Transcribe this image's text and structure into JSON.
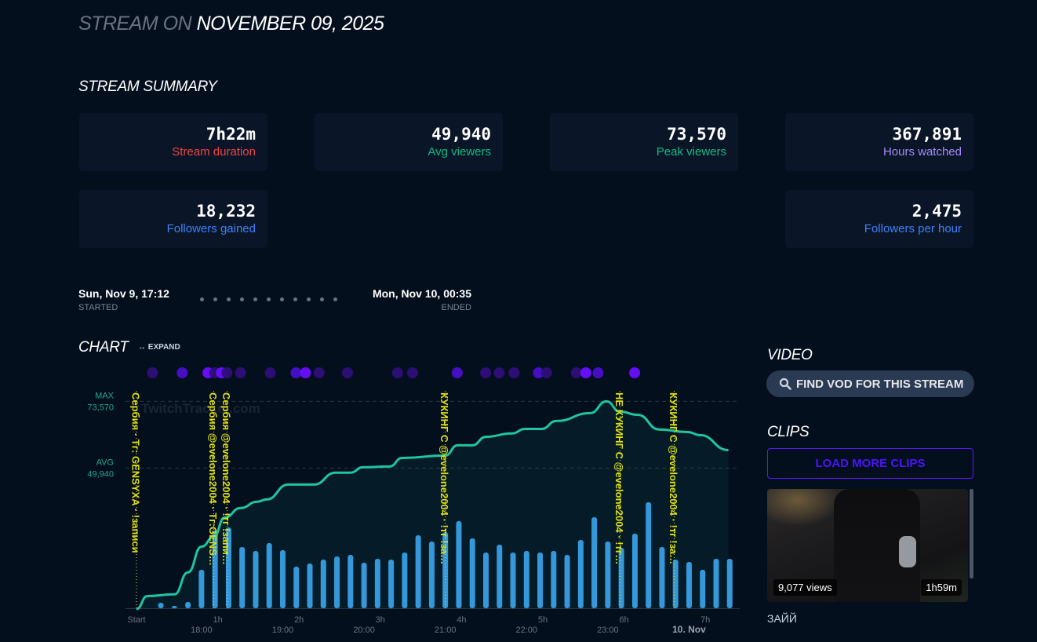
{
  "header": {
    "prefix": "STREAM ON",
    "date": "NOVEMBER 09, 2025"
  },
  "summary": {
    "title": "STREAM SUMMARY",
    "cards": [
      {
        "value": "7h22m",
        "label": "Stream duration",
        "color": "#ef4444"
      },
      {
        "value": "49,940",
        "label": "Avg viewers",
        "color": "#10b981"
      },
      {
        "value": "73,570",
        "label": "Peak viewers",
        "color": "#10b981"
      },
      {
        "value": "367,891",
        "label": "Hours watched",
        "color": "#a78bfa"
      },
      {
        "value": "18,232",
        "label": "Followers gained",
        "color": "#3b82f6"
      },
      {
        "value": "2,475",
        "label": "Followers per hour",
        "color": "#3b82f6"
      }
    ]
  },
  "timeline": {
    "start_date": "Sun, Nov 9, 17:12",
    "start_label": "STARTED",
    "end_date": "Mon, Nov 10, 00:35",
    "end_label": "ENDED"
  },
  "chart": {
    "title": "CHART",
    "expand_label": "EXPAND",
    "watermark": "TwitchTracker.com"
  },
  "chart_data": {
    "type": "line",
    "x_unit": "minutes since start",
    "xlim": [
      0,
      442
    ],
    "ylim": [
      0,
      73570
    ],
    "ref_lines": [
      {
        "label": "MAX",
        "value_label": "73,570",
        "value": 73570
      },
      {
        "label": "AVG",
        "value_label": "49,940",
        "value": 49940
      }
    ],
    "x_ticks": [
      {
        "t": 0,
        "label": "Start",
        "sub": ""
      },
      {
        "t": 60,
        "label": "1h",
        "sub": "18:00"
      },
      {
        "t": 120,
        "label": "2h",
        "sub": "19:00"
      },
      {
        "t": 180,
        "label": "3h",
        "sub": "20:00"
      },
      {
        "t": 240,
        "label": "4h",
        "sub": "21:00"
      },
      {
        "t": 300,
        "label": "5h",
        "sub": "22:00"
      },
      {
        "t": 360,
        "label": "6h",
        "sub": "23:00"
      },
      {
        "t": 420,
        "label": "7h",
        "sub": "10. Nov"
      }
    ],
    "viewers": {
      "name": "Viewers",
      "color": "#1fc5a0",
      "t": [
        0,
        8,
        28,
        38,
        48,
        57,
        65,
        77,
        89,
        96,
        112,
        131,
        147,
        158,
        167,
        187,
        196,
        228,
        237,
        248,
        258,
        277,
        287,
        299,
        310,
        335,
        347,
        357,
        370,
        386,
        407,
        416,
        437
      ],
      "v": [
        0,
        4600,
        5200,
        13000,
        22100,
        25500,
        32400,
        35800,
        38000,
        38800,
        44100,
        44100,
        48300,
        48300,
        50200,
        50500,
        53500,
        54400,
        58000,
        58000,
        61000,
        62200,
        63800,
        63800,
        66600,
        69400,
        73570,
        69900,
        68800,
        63600,
        62700,
        61600,
        56300
      ]
    },
    "bars": {
      "name": "Activity (relative)",
      "color": "#3498db",
      "start_t": 18,
      "interval_min": 10,
      "values": [
        7,
        3,
        8,
        49,
        99,
        103,
        78,
        73,
        83,
        74,
        53,
        57,
        62,
        66,
        68,
        58,
        63,
        62,
        71,
        93,
        85,
        97,
        111,
        89,
        71,
        81,
        71,
        73,
        71,
        73,
        68,
        87,
        116,
        85,
        77,
        95,
        135,
        78,
        62,
        59,
        49,
        63,
        63
      ],
      "max": 140
    },
    "annotations": [
      {
        "t": 0,
        "text": "Сербия · Тг: GENSYXA · !записи"
      },
      {
        "t": 57,
        "text": "Сербия @evelone2004 · Тг:GENS…"
      },
      {
        "t": 67,
        "text": "Сербия @evelone2004 · !тг !запи…"
      },
      {
        "t": 228,
        "text": "КУКИНГ С @evelone2004 · !тг !за…"
      },
      {
        "t": 357,
        "text": "НЕ КУКИНГ С @evelone2004 · !тг…"
      },
      {
        "t": 397,
        "text": "КУКИНГ С @evelone2004 · !тг !за…"
      }
    ],
    "events": [
      {
        "t": 6,
        "i": 0.3
      },
      {
        "t": 28,
        "i": 0.6
      },
      {
        "t": 47,
        "i": 1
      },
      {
        "t": 52,
        "i": 0.3
      },
      {
        "t": 57,
        "i": 1
      },
      {
        "t": 61,
        "i": 0.3
      },
      {
        "t": 71,
        "i": 0.3
      },
      {
        "t": 93,
        "i": 0.3
      },
      {
        "t": 112,
        "i": 0.6
      },
      {
        "t": 119,
        "i": 1
      },
      {
        "t": 129,
        "i": 0.3
      },
      {
        "t": 150,
        "i": 0.3
      },
      {
        "t": 187,
        "i": 0.3
      },
      {
        "t": 198,
        "i": 0.3
      },
      {
        "t": 231,
        "i": 0.6
      },
      {
        "t": 252,
        "i": 0.3
      },
      {
        "t": 262,
        "i": 0.3
      },
      {
        "t": 273,
        "i": 0.3
      },
      {
        "t": 291,
        "i": 0.6
      },
      {
        "t": 297,
        "i": 0.3
      },
      {
        "t": 319,
        "i": 0.3
      },
      {
        "t": 326,
        "i": 1
      },
      {
        "t": 335,
        "i": 0.6
      },
      {
        "t": 362,
        "i": 1
      }
    ]
  },
  "video": {
    "title": "VIDEO",
    "find_vod_label": "FIND VOD FOR THIS STREAM"
  },
  "clips": {
    "title": "CLIPS",
    "load_more_label": "LOAD MORE CLIPS",
    "items": [
      {
        "views": "9,077 views",
        "duration": "1h59m",
        "title": "ЗАЙЙ"
      }
    ]
  }
}
